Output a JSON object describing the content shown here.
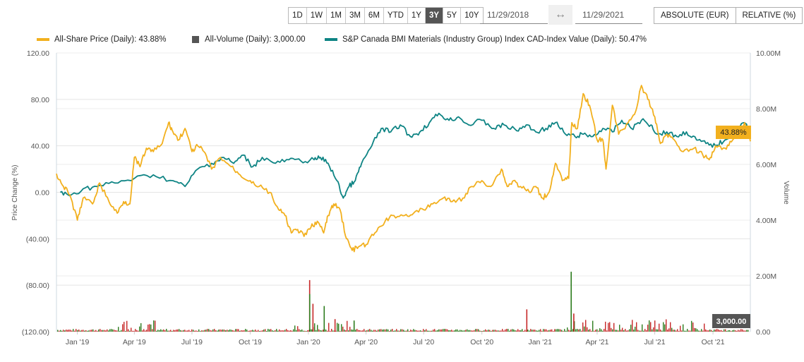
{
  "toolbar": {
    "ranges": [
      "1D",
      "1W",
      "1M",
      "3M",
      "6M",
      "YTD",
      "1Y",
      "3Y",
      "5Y",
      "10Y"
    ],
    "active_range": "3Y",
    "start_date": "11/29/2018",
    "end_date": "11/29/2021",
    "swap_icon": "left-right-arrow-icon",
    "mode_absolute": "ABSOLUTE (EUR)",
    "mode_relative": "RELATIVE (%)"
  },
  "legend": {
    "share_price": "All-Share Price (Daily): 43.88%",
    "volume": "All-Volume (Daily): 3,000.00",
    "index": "S&P Canada BMI Materials (Industry Group) Index CAD-Index Value (Daily): 50.47%"
  },
  "colors": {
    "share_price": "#f2b01e",
    "index": "#0e8484",
    "volume_up": "#2e7d1f",
    "volume_down": "#c62828",
    "tooltip_price_bg": "#f2b01e",
    "tooltip_volume_bg": "#555555"
  },
  "badges": {
    "price_last": "43.88%",
    "volume_last": "3,000.00"
  },
  "chart_data": {
    "type": "line",
    "title": "",
    "xlabel": "",
    "ylabel": "Price Change (%)",
    "y2label": "Volume",
    "ylim": [
      -120,
      120
    ],
    "y2lim": [
      0,
      10000000
    ],
    "y_ticks": [
      "120.00",
      "80.00",
      "40.00",
      "0.00",
      "(40.00)",
      "(80.00)",
      "(120.00)"
    ],
    "y2_ticks": [
      "10.00M",
      "8.00M",
      "6.00M",
      "4.00M",
      "2.00M",
      "0.00"
    ],
    "x_ticks": [
      "Jan '19",
      "Apr '19",
      "Jul '19",
      "Oct '19",
      "Jan '20",
      "Apr '20",
      "Jul '20",
      "Oct '20",
      "Jan '21",
      "Apr '21",
      "Jul '21",
      "Oct '21"
    ],
    "grid": true,
    "legend_position": "top",
    "series": [
      {
        "name": "All-Share Price (Daily)",
        "last_value": "43.88%",
        "points": [
          [
            "2018-11-29",
            16
          ],
          [
            "2018-12-10",
            5
          ],
          [
            "2018-12-20",
            -2
          ],
          [
            "2019-01-01",
            -24
          ],
          [
            "2019-01-10",
            -5
          ],
          [
            "2019-01-25",
            -10
          ],
          [
            "2019-02-05",
            8
          ],
          [
            "2019-02-20",
            -8
          ],
          [
            "2019-03-05",
            -18
          ],
          [
            "2019-03-15",
            -8
          ],
          [
            "2019-03-25",
            -10
          ],
          [
            "2019-04-01",
            30
          ],
          [
            "2019-04-10",
            22
          ],
          [
            "2019-04-20",
            38
          ],
          [
            "2019-05-01",
            35
          ],
          [
            "2019-05-15",
            42
          ],
          [
            "2019-05-25",
            60
          ],
          [
            "2019-06-01",
            52
          ],
          [
            "2019-06-10",
            45
          ],
          [
            "2019-06-20",
            55
          ],
          [
            "2019-07-01",
            35
          ],
          [
            "2019-07-10",
            40
          ],
          [
            "2019-07-20",
            35
          ],
          [
            "2019-08-01",
            20
          ],
          [
            "2019-08-15",
            30
          ],
          [
            "2019-09-01",
            22
          ],
          [
            "2019-09-15",
            15
          ],
          [
            "2019-10-01",
            10
          ],
          [
            "2019-10-15",
            5
          ],
          [
            "2019-11-01",
            0
          ],
          [
            "2019-11-15",
            -15
          ],
          [
            "2019-11-25",
            -20
          ],
          [
            "2019-12-05",
            -35
          ],
          [
            "2019-12-15",
            -32
          ],
          [
            "2019-12-25",
            -38
          ],
          [
            "2020-01-05",
            -30
          ],
          [
            "2020-01-15",
            -25
          ],
          [
            "2020-01-25",
            -35
          ],
          [
            "2020-02-01",
            -20
          ],
          [
            "2020-02-10",
            -10
          ],
          [
            "2020-02-20",
            -15
          ],
          [
            "2020-03-01",
            -40
          ],
          [
            "2020-03-10",
            -50
          ],
          [
            "2020-03-20",
            -47
          ],
          [
            "2020-04-01",
            -45
          ],
          [
            "2020-04-15",
            -35
          ],
          [
            "2020-05-01",
            -25
          ],
          [
            "2020-05-15",
            -20
          ],
          [
            "2020-06-01",
            -20
          ],
          [
            "2020-06-15",
            -18
          ],
          [
            "2020-07-01",
            -15
          ],
          [
            "2020-07-15",
            -10
          ],
          [
            "2020-08-01",
            -5
          ],
          [
            "2020-08-15",
            -8
          ],
          [
            "2020-09-01",
            -5
          ],
          [
            "2020-09-15",
            5
          ],
          [
            "2020-10-01",
            10
          ],
          [
            "2020-10-15",
            5
          ],
          [
            "2020-11-01",
            20
          ],
          [
            "2020-11-10",
            5
          ],
          [
            "2020-11-20",
            10
          ],
          [
            "2020-12-01",
            5
          ],
          [
            "2020-12-15",
            0
          ],
          [
            "2020-12-25",
            5
          ],
          [
            "2021-01-05",
            -5
          ],
          [
            "2021-01-15",
            0
          ],
          [
            "2021-01-25",
            25
          ],
          [
            "2021-02-05",
            10
          ],
          [
            "2021-02-15",
            12
          ],
          [
            "2021-02-20",
            60
          ],
          [
            "2021-03-01",
            55
          ],
          [
            "2021-03-10",
            85
          ],
          [
            "2021-03-20",
            75
          ],
          [
            "2021-04-01",
            45
          ],
          [
            "2021-04-10",
            45
          ],
          [
            "2021-04-15",
            20
          ],
          [
            "2021-04-25",
            75
          ],
          [
            "2021-05-05",
            50
          ],
          [
            "2021-05-20",
            60
          ],
          [
            "2021-06-01",
            70
          ],
          [
            "2021-06-10",
            92
          ],
          [
            "2021-06-20",
            80
          ],
          [
            "2021-07-01",
            65
          ],
          [
            "2021-07-10",
            42
          ],
          [
            "2021-07-20",
            50
          ],
          [
            "2021-08-01",
            45
          ],
          [
            "2021-08-15",
            35
          ],
          [
            "2021-09-01",
            38
          ],
          [
            "2021-09-15",
            32
          ],
          [
            "2021-09-25",
            28
          ],
          [
            "2021-10-05",
            40
          ],
          [
            "2021-10-20",
            38
          ],
          [
            "2021-11-01",
            45
          ],
          [
            "2021-11-20",
            60
          ],
          [
            "2021-11-29",
            43.88
          ]
        ]
      },
      {
        "name": "S&P Canada BMI Materials (Industry Group) Index CAD-Index Value (Daily)",
        "last_value": "50.47%",
        "points": [
          [
            "2018-12-05",
            0
          ],
          [
            "2018-12-20",
            -3
          ],
          [
            "2019-01-10",
            3
          ],
          [
            "2019-02-01",
            5
          ],
          [
            "2019-03-01",
            8
          ],
          [
            "2019-04-01",
            12
          ],
          [
            "2019-05-01",
            15
          ],
          [
            "2019-06-01",
            10
          ],
          [
            "2019-06-20",
            5
          ],
          [
            "2019-07-10",
            20
          ],
          [
            "2019-08-01",
            25
          ],
          [
            "2019-08-20",
            30
          ],
          [
            "2019-09-05",
            25
          ],
          [
            "2019-09-20",
            32
          ],
          [
            "2019-10-05",
            22
          ],
          [
            "2019-10-20",
            30
          ],
          [
            "2019-11-10",
            25
          ],
          [
            "2019-12-01",
            28
          ],
          [
            "2019-12-20",
            27
          ],
          [
            "2020-01-10",
            28
          ],
          [
            "2020-01-20",
            30
          ],
          [
            "2020-02-01",
            25
          ],
          [
            "2020-02-15",
            10
          ],
          [
            "2020-02-25",
            -5
          ],
          [
            "2020-03-05",
            5
          ],
          [
            "2020-03-15",
            10
          ],
          [
            "2020-03-25",
            25
          ],
          [
            "2020-04-10",
            40
          ],
          [
            "2020-04-25",
            55
          ],
          [
            "2020-05-10",
            52
          ],
          [
            "2020-05-25",
            58
          ],
          [
            "2020-06-10",
            48
          ],
          [
            "2020-06-25",
            52
          ],
          [
            "2020-07-10",
            60
          ],
          [
            "2020-07-25",
            68
          ],
          [
            "2020-08-10",
            62
          ],
          [
            "2020-08-25",
            65
          ],
          [
            "2020-09-10",
            58
          ],
          [
            "2020-10-01",
            62
          ],
          [
            "2020-10-20",
            55
          ],
          [
            "2020-11-05",
            58
          ],
          [
            "2020-11-25",
            53
          ],
          [
            "2020-12-10",
            58
          ],
          [
            "2020-12-25",
            52
          ],
          [
            "2021-01-10",
            55
          ],
          [
            "2021-01-25",
            60
          ],
          [
            "2021-02-10",
            50
          ],
          [
            "2021-02-25",
            48
          ],
          [
            "2021-03-10",
            50
          ],
          [
            "2021-03-25",
            48
          ],
          [
            "2021-04-10",
            55
          ],
          [
            "2021-04-25",
            52
          ],
          [
            "2021-05-10",
            62
          ],
          [
            "2021-05-25",
            55
          ],
          [
            "2021-06-10",
            62
          ],
          [
            "2021-06-25",
            58
          ],
          [
            "2021-07-05",
            50
          ],
          [
            "2021-07-20",
            52
          ],
          [
            "2021-08-05",
            48
          ],
          [
            "2021-08-20",
            52
          ],
          [
            "2021-09-05",
            45
          ],
          [
            "2021-09-20",
            42
          ],
          [
            "2021-10-05",
            40
          ],
          [
            "2021-10-20",
            45
          ],
          [
            "2021-11-05",
            55
          ],
          [
            "2021-11-20",
            60
          ],
          [
            "2021-11-29",
            50.47
          ]
        ]
      },
      {
        "name": "All-Volume (Daily)",
        "axis": "y2",
        "last_value": "3,000.00",
        "notable_spikes": [
          [
            "2020-01-02",
            1850000
          ],
          [
            "2020-01-01",
            1350000
          ],
          [
            "2020-01-05",
            1000000
          ],
          [
            "2020-01-25",
            920000
          ],
          [
            "2020-02-10",
            450000
          ],
          [
            "2020-03-10",
            400000
          ],
          [
            "2020-12-10",
            800000
          ],
          [
            "2021-02-17",
            2150000
          ],
          [
            "2021-02-20",
            650000
          ]
        ]
      }
    ]
  }
}
